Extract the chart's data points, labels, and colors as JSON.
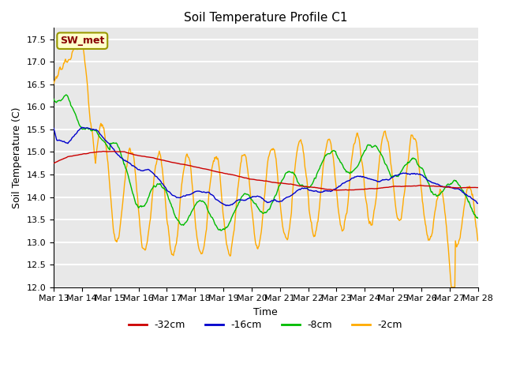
{
  "title": "Soil Temperature Profile C1",
  "xlabel": "Time",
  "ylabel": "Soil Temperature (C)",
  "ylim": [
    12.0,
    17.75
  ],
  "yticks": [
    12.0,
    12.5,
    13.0,
    13.5,
    14.0,
    14.5,
    15.0,
    15.5,
    16.0,
    16.5,
    17.0,
    17.5
  ],
  "x_labels": [
    "Mar 13",
    "Mar 14",
    "Mar 15",
    "Mar 16",
    "Mar 17",
    "Mar 18",
    "Mar 19",
    "Mar 20",
    "Mar 21",
    "Mar 22",
    "Mar 23",
    "Mar 24",
    "Mar 25",
    "Mar 26",
    "Mar 27",
    "Mar 28"
  ],
  "colors": {
    "-32cm": "#cc0000",
    "-16cm": "#0000cc",
    "-8cm": "#00bb00",
    "-2cm": "#ffaa00"
  },
  "legend_label": "SW_met",
  "legend_box_facecolor": "#ffffcc",
  "legend_text_color": "#880000",
  "legend_box_edgecolor": "#999900",
  "plot_bg_color": "#e8e8e8",
  "grid_color": "#ffffff",
  "n_points": 720
}
